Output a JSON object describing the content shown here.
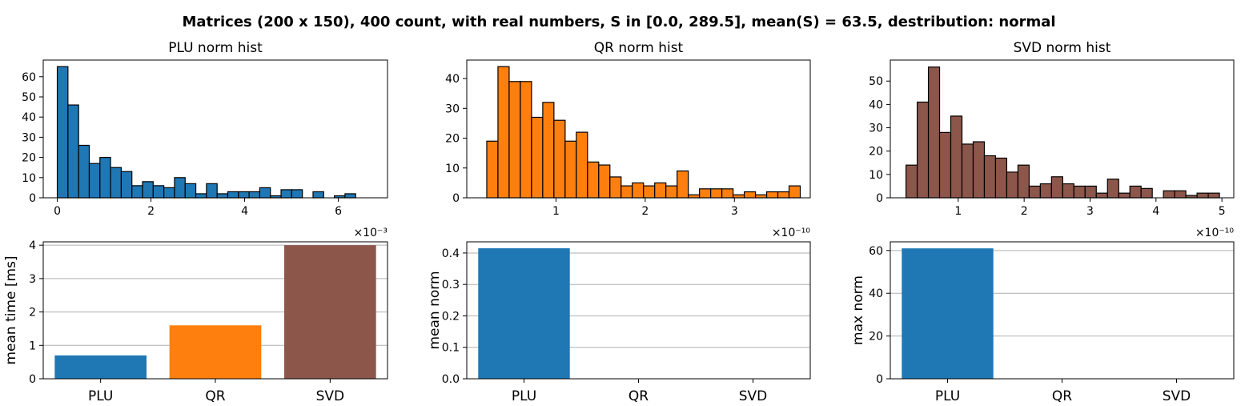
{
  "suptitle": "Matrices (200 x 150), 400 count, with real numbers, S in [0.0, 289.5], mean(S) = 63.5, destribution: normal",
  "chart_data": [
    {
      "type": "bar",
      "title": "PLU norm hist",
      "color": "#1f77b4",
      "bin_start": 0.0,
      "bin_width": 0.2275,
      "counts": [
        65,
        46,
        26,
        17,
        20,
        15,
        13,
        6,
        8,
        6,
        5,
        10,
        7,
        2,
        7,
        2,
        3,
        3,
        3,
        5,
        1,
        4,
        4,
        0,
        3,
        0,
        1,
        2
      ],
      "xlim": [
        -0.3,
        7.05
      ],
      "ylim": [
        0,
        68.25
      ],
      "xticks": [
        0,
        2,
        4,
        6
      ],
      "xtick_labels": [
        "0",
        "2",
        "4",
        "6"
      ],
      "yticks": [
        0,
        10,
        20,
        30,
        40,
        50,
        60
      ],
      "ytick_labels": [
        "0",
        "10",
        "20",
        "30",
        "40",
        "50",
        "60"
      ],
      "x_offset_label": "×10⁻³",
      "grid": false
    },
    {
      "type": "bar",
      "title": "QR norm hist",
      "color": "#ff7f0e",
      "bin_start": 0.224,
      "bin_width": 0.1255,
      "counts": [
        19,
        44,
        39,
        39,
        27,
        32,
        26,
        19,
        22,
        12,
        11,
        7,
        4,
        5,
        4,
        5,
        4,
        9,
        1,
        3,
        3,
        3,
        1,
        2,
        1,
        2,
        2,
        4
      ],
      "xlim": [
        0.0,
        3.85
      ],
      "ylim": [
        0,
        46.2
      ],
      "xticks": [
        1,
        2,
        3
      ],
      "xtick_labels": [
        "1",
        "2",
        "3"
      ],
      "yticks": [
        0,
        10,
        20,
        30,
        40
      ],
      "ytick_labels": [
        "0",
        "10",
        "20",
        "30",
        "40"
      ],
      "x_offset_label": "×10⁻¹⁰",
      "grid": false
    },
    {
      "type": "bar",
      "title": "SVD norm hist",
      "color": "#8c564b",
      "bin_start": 0.208,
      "bin_width": 0.1698,
      "counts": [
        14,
        41,
        56,
        28,
        35,
        23,
        24,
        18,
        17,
        11,
        14,
        5,
        6,
        9,
        6,
        5,
        5,
        2,
        8,
        2,
        5,
        4,
        0,
        3,
        3,
        1,
        2,
        2
      ],
      "xlim": [
        -0.03,
        5.18
      ],
      "ylim": [
        0,
        59.0
      ],
      "xticks": [
        1,
        2,
        3,
        4,
        5
      ],
      "xtick_labels": [
        "1",
        "2",
        "3",
        "4",
        "5"
      ],
      "yticks": [
        0,
        10,
        20,
        30,
        40,
        50
      ],
      "ytick_labels": [
        "0",
        "10",
        "20",
        "30",
        "40",
        "50"
      ],
      "x_offset_label": "×10⁻¹⁰",
      "grid": false
    },
    {
      "type": "bar",
      "categories": [
        "PLU",
        "QR",
        "SVD"
      ],
      "values": [
        0.7,
        1.6,
        4.0
      ],
      "colors": [
        "#1f77b4",
        "#ff7f0e",
        "#8c564b"
      ],
      "ylabel": "mean time [ms]",
      "ylim": [
        0,
        4.1
      ],
      "yticks": [
        0,
        1,
        2,
        3,
        4
      ],
      "ytick_labels": [
        "0",
        "1",
        "2",
        "3",
        "4"
      ],
      "grid": true
    },
    {
      "type": "bar",
      "categories": [
        "PLU",
        "QR",
        "SVD"
      ],
      "values": [
        0.415,
        0.0,
        0.0
      ],
      "colors": [
        "#1f77b4",
        "#1f77b4",
        "#1f77b4"
      ],
      "ylabel": "mean norm",
      "ylim": [
        0,
        0.4355
      ],
      "yticks": [
        0.0,
        0.1,
        0.2,
        0.3,
        0.4
      ],
      "ytick_labels": [
        "0.0",
        "0.1",
        "0.2",
        "0.3",
        "0.4"
      ],
      "grid": true
    },
    {
      "type": "bar",
      "categories": [
        "PLU",
        "QR",
        "SVD"
      ],
      "values": [
        61.0,
        0.0,
        0.0
      ],
      "colors": [
        "#1f77b4",
        "#1f77b4",
        "#1f77b4"
      ],
      "ylabel": "max norm",
      "ylim": [
        0,
        64.05
      ],
      "yticks": [
        0,
        20,
        40,
        60
      ],
      "ytick_labels": [
        "0",
        "20",
        "40",
        "60"
      ],
      "grid": true
    }
  ]
}
